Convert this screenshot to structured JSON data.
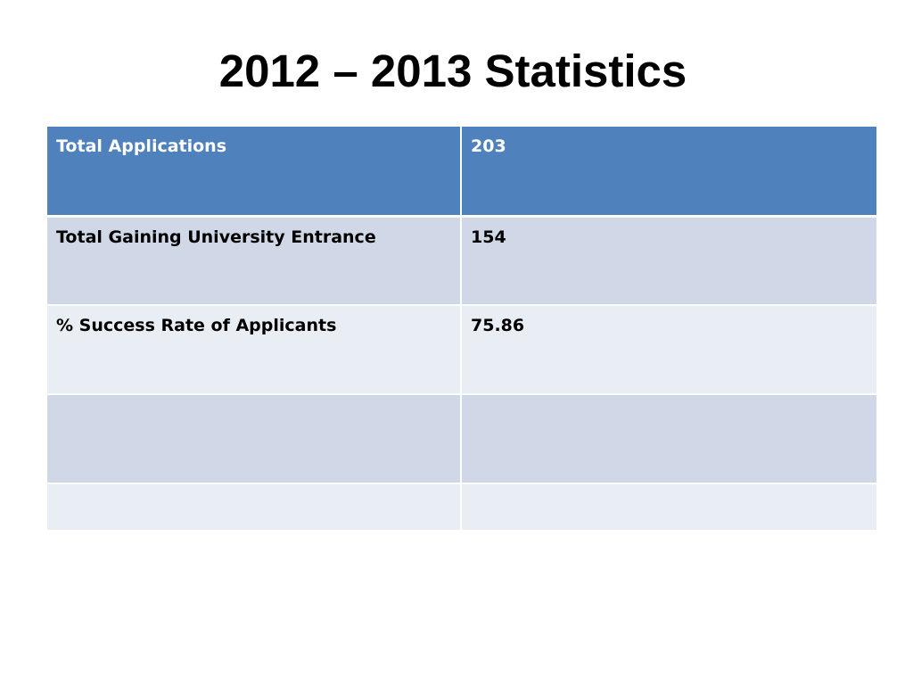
{
  "slide": {
    "title": "2012 – 2013 Statistics"
  },
  "table": {
    "rows": [
      {
        "label": "Total Applications",
        "value": "203"
      },
      {
        "label": "Total Gaining University Entrance",
        "value": "154"
      },
      {
        "label": "% Success Rate of Applicants",
        "value": "75.86"
      },
      {
        "label": "",
        "value": ""
      },
      {
        "label": "",
        "value": ""
      }
    ]
  },
  "colors": {
    "header_fill": "#4f81bd",
    "band_dark": "#d0d8e8",
    "band_light": "#e9edf4"
  }
}
